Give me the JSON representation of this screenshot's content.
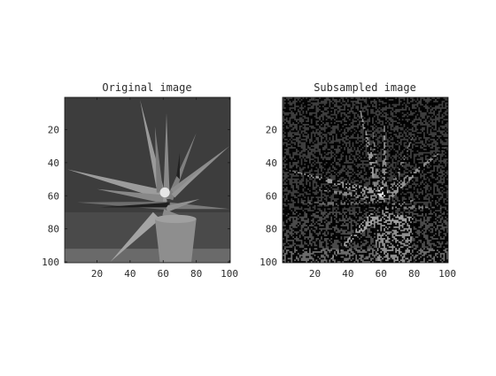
{
  "figure": {
    "background": "#ffffff",
    "axes_color": "#1a1a1a",
    "panels": [
      {
        "title": "Original image",
        "x_ticks": [
          "20",
          "40",
          "60",
          "80",
          "100"
        ],
        "y_ticks": [
          "20",
          "40",
          "60",
          "80",
          "100"
        ],
        "xlim": [
          0.5,
          100.5
        ],
        "ylim": [
          0.5,
          100.5
        ],
        "y_direction": "reversed",
        "content": "grayscale photograph of a potted agave-like plant with long pointed leaves on a dark gray background",
        "noise": false
      },
      {
        "title": "Subsampled image",
        "x_ticks": [
          "20",
          "40",
          "60",
          "80",
          "100"
        ],
        "y_ticks": [
          "20",
          "40",
          "60",
          "80",
          "100"
        ],
        "xlim": [
          0.5,
          100.5
        ],
        "ylim": [
          0.5,
          100.5
        ],
        "y_direction": "reversed",
        "content": "same plant image with many pixels randomly set to black (subsampled)",
        "noise": true,
        "noise_fraction": 0.5
      }
    ]
  }
}
